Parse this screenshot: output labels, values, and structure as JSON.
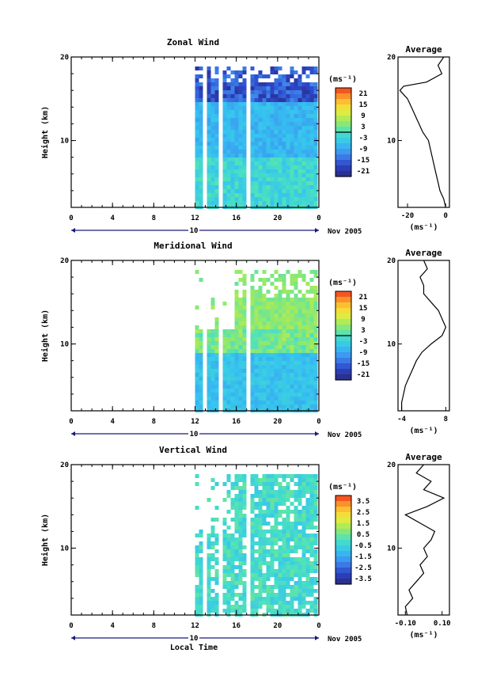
{
  "figure": {
    "xlabel": "Local Time",
    "date_label": "Nov 2005",
    "day_label": "10"
  },
  "chart_data": [
    {
      "type": "heatmap",
      "title": "Zonal Wind",
      "ylabel": "Height (km)",
      "x_ticks": [
        "0",
        "4",
        "8",
        "12",
        "16",
        "20",
        "0"
      ],
      "y_ticks": [
        "20",
        "10"
      ],
      "xlim": [
        0,
        24
      ],
      "ylim": [
        2,
        20
      ],
      "data_start_hour": 12,
      "colorbar": {
        "unit": "(ms⁻¹)",
        "ticks": [
          "21",
          "15",
          "9",
          "3",
          "-3",
          "-9",
          "-15",
          "-21"
        ],
        "range": [
          -24,
          24
        ],
        "zero_line": true
      },
      "profile": {
        "title": "Average",
        "xlabel": "(ms⁻¹)",
        "x_ticks": [
          "-20",
          "0"
        ],
        "y_ticks": [
          "20",
          "10"
        ],
        "xlim": [
          -25,
          2
        ],
        "heights": [
          2,
          3,
          4,
          5,
          6,
          7,
          8,
          9,
          10,
          11,
          12,
          13,
          14,
          15,
          16,
          16.5,
          17,
          18,
          19,
          20
        ],
        "values": [
          0,
          -1,
          -3,
          -4,
          -5,
          -6,
          -7,
          -8,
          -9,
          -12,
          -14,
          -16,
          -18,
          -20,
          -24,
          -22,
          -10,
          -2,
          -4,
          -1
        ]
      }
    },
    {
      "type": "heatmap",
      "title": "Meridional Wind",
      "ylabel": "Height (km)",
      "x_ticks": [
        "0",
        "4",
        "8",
        "12",
        "16",
        "20",
        "0"
      ],
      "y_ticks": [
        "20",
        "10"
      ],
      "xlim": [
        0,
        24
      ],
      "ylim": [
        2,
        20
      ],
      "data_start_hour": 12,
      "colorbar": {
        "unit": "(ms⁻¹)",
        "ticks": [
          "21",
          "15",
          "9",
          "3",
          "-3",
          "-9",
          "-15",
          "-21"
        ],
        "range": [
          -24,
          24
        ],
        "zero_line": true
      },
      "profile": {
        "title": "Average",
        "xlabel": "(ms⁻¹)",
        "x_ticks": [
          "-4",
          "8"
        ],
        "y_ticks": [
          "20",
          "10"
        ],
        "xlim": [
          -5,
          9
        ],
        "heights": [
          2,
          3,
          4,
          5,
          6,
          7,
          8,
          9,
          10,
          11,
          12,
          13,
          14,
          15,
          16,
          17,
          18,
          19,
          20
        ],
        "values": [
          -4,
          -4,
          -3.5,
          -3,
          -2,
          -1,
          0,
          1.5,
          4,
          7,
          8,
          7,
          6,
          4,
          2,
          2,
          1,
          3,
          2
        ]
      }
    },
    {
      "type": "heatmap",
      "title": "Vertical Wind",
      "ylabel": "Height (km)",
      "x_ticks": [
        "0",
        "4",
        "8",
        "12",
        "16",
        "20",
        "0"
      ],
      "y_ticks": [
        "20",
        "10"
      ],
      "xlim": [
        0,
        24
      ],
      "ylim": [
        2,
        20
      ],
      "data_start_hour": 12,
      "colorbar": {
        "unit": "(ms⁻¹)",
        "ticks": [
          "3.5",
          "2.5",
          "1.5",
          "0.5",
          "-0.5",
          "-1.5",
          "-2.5",
          "-3.5"
        ],
        "range": [
          -4,
          4
        ],
        "zero_line": false
      },
      "profile": {
        "title": "Average",
        "xlabel": "(ms⁻¹)",
        "x_ticks": [
          "-0.10",
          "0.10"
        ],
        "y_ticks": [
          "20",
          "10"
        ],
        "xlim": [
          -0.14,
          0.14
        ],
        "heights": [
          2,
          3,
          4,
          5,
          6,
          7,
          8,
          9,
          10,
          11,
          12,
          13,
          14,
          15,
          16,
          17,
          18,
          19,
          20
        ],
        "values": [
          -0.09,
          -0.1,
          -0.06,
          -0.08,
          -0.04,
          0.0,
          -0.02,
          0.02,
          0.0,
          0.04,
          0.06,
          -0.02,
          -0.1,
          0.02,
          0.11,
          0.0,
          0.04,
          -0.04,
          0.0
        ]
      }
    }
  ],
  "colors": {
    "scale": [
      "#2a2a7a",
      "#2d45c8",
      "#3f8cf0",
      "#35c3f0",
      "#48e0c4",
      "#9cea60",
      "#f1ec3c",
      "#ffae2e",
      "#f0381e"
    ],
    "contour": "#000000"
  }
}
